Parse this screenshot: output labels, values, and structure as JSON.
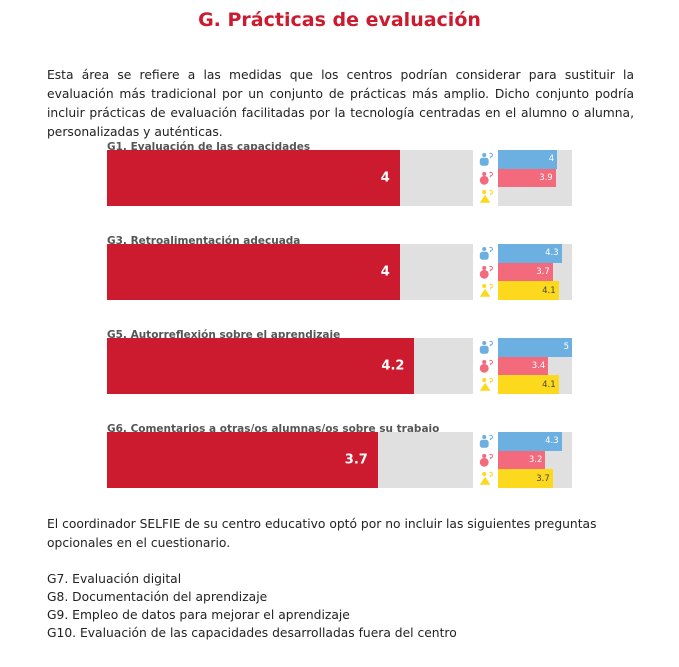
{
  "title": "G. Prácticas de evaluación",
  "intro": "Esta área se refiere a las medidas que los centros podrían considerar para sustituir la evaluación más tradicional por un conjunto de prácticas más amplio. Dicho conjunto podría incluir prácticas de evaluación facilitadas por la tecnología centradas en el alumno o alumna, personalizadas y auténticas.",
  "colors": {
    "main": "#cc1a2f",
    "directivos": "#6cb0e2",
    "profesorado": "#f36a7d",
    "alumnado": "#fcd91c",
    "track": "#e0e0e0"
  },
  "scale_max": 5,
  "sections": [
    {
      "label": "G1. Evaluación de las capacidades",
      "value": 4,
      "value_label": "4",
      "groups": [
        {
          "icon": "leader-person-icon",
          "value": 4,
          "label": "4"
        },
        {
          "icon": "teacher-person-icon",
          "value": 3.9,
          "label": "3.9"
        },
        {
          "icon": "student-person-icon",
          "value": null,
          "label": ""
        }
      ]
    },
    {
      "label": "G3. Retroalimentación adecuada",
      "value": 4,
      "value_label": "4",
      "groups": [
        {
          "icon": "leader-person-icon",
          "value": 4.3,
          "label": "4.3"
        },
        {
          "icon": "teacher-person-icon",
          "value": 3.7,
          "label": "3.7"
        },
        {
          "icon": "student-person-icon",
          "value": 4.1,
          "label": "4.1"
        }
      ]
    },
    {
      "label": "G5. Autorreflexión sobre el aprendizaje",
      "value": 4.2,
      "value_label": "4.2",
      "groups": [
        {
          "icon": "leader-person-icon",
          "value": 5,
          "label": "5"
        },
        {
          "icon": "teacher-person-icon",
          "value": 3.4,
          "label": "3.4"
        },
        {
          "icon": "student-person-icon",
          "value": 4.1,
          "label": "4.1"
        }
      ]
    },
    {
      "label": "G6. Comentarios a otras/os alumnas/os sobre su trabajo",
      "value": 3.7,
      "value_label": "3.7",
      "groups": [
        {
          "icon": "leader-person-icon",
          "value": 4.3,
          "label": "4.3"
        },
        {
          "icon": "teacher-person-icon",
          "value": 3.2,
          "label": "3.2"
        },
        {
          "icon": "student-person-icon",
          "value": 3.7,
          "label": "3.7"
        }
      ]
    }
  ],
  "outro": "El coordinador SELFIE de su centro educativo optó por no incluir las siguientes preguntas opcionales en el cuestionario.",
  "excluded": [
    "G7. Evaluación digital",
    "G8. Documentación del aprendizaje",
    "G9. Empleo de datos para mejorar el aprendizaje",
    "G10. Evaluación de las capacidades desarrolladas fuera del centro"
  ]
}
